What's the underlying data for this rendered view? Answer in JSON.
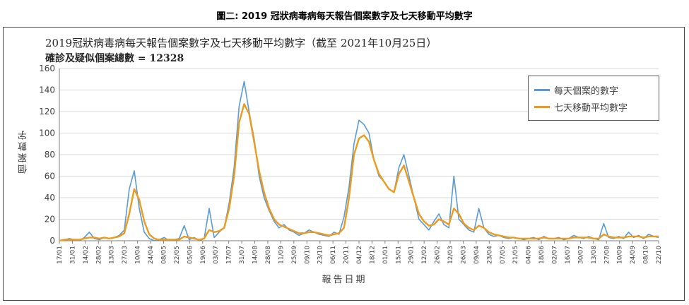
{
  "caption": "圖二: 2019 冠狀病毒病每天報告個案數字及七天移動平均數字",
  "colors": {
    "daily": "#5b9bd5",
    "avg": "#ed9b1c",
    "axis": "#7f7f7f"
  },
  "chart_data": {
    "type": "line",
    "title": "2019冠狀病毒病每天報告個案數字及七天移動平均數字（截至 2021年10月25日）",
    "subtitle": "確診及疑似個案總數 = 12328",
    "xlabel": "報告日期",
    "ylabel": "個案數字",
    "ylim": [
      0,
      160
    ],
    "yticks": [
      0,
      20,
      40,
      60,
      80,
      100,
      120,
      140,
      160
    ],
    "legend_position": "top-right",
    "x_tick_labels": [
      "17/01",
      "31/01",
      "14/02",
      "28/02",
      "13/03",
      "27/03",
      "10/04",
      "24/04",
      "08/05",
      "22/05",
      "05/06",
      "19/06",
      "03/07",
      "17/07",
      "31/07",
      "14/08",
      "28/08",
      "11/09",
      "25/09",
      "09/10",
      "23/10",
      "06/11",
      "20/11",
      "04/12",
      "18/12",
      "01/01",
      "15/01",
      "29/01",
      "12/02",
      "26/02",
      "12/03",
      "26/03",
      "09/04",
      "23/04",
      "07/05",
      "21/05",
      "04/06",
      "18/06",
      "02/07",
      "16/07",
      "30/07",
      "13/08",
      "27/08",
      "10/09",
      "24/09",
      "08/10",
      "22/10"
    ],
    "series": [
      {
        "name": "每天個案的數字",
        "values": [
          0,
          1,
          2,
          1,
          0,
          3,
          8,
          2,
          1,
          3,
          2,
          3,
          5,
          10,
          48,
          65,
          30,
          8,
          2,
          0,
          1,
          3,
          0,
          1,
          2,
          14,
          1,
          3,
          0,
          2,
          30,
          3,
          8,
          12,
          35,
          68,
          125,
          148,
          120,
          95,
          60,
          40,
          28,
          18,
          12,
          15,
          10,
          8,
          5,
          7,
          10,
          8,
          6,
          5,
          4,
          8,
          6,
          22,
          50,
          90,
          112,
          108,
          100,
          75,
          60,
          55,
          48,
          45,
          68,
          80,
          60,
          40,
          20,
          15,
          10,
          18,
          25,
          15,
          12,
          60,
          20,
          15,
          10,
          8,
          30,
          12,
          6,
          4,
          5,
          3,
          2,
          3,
          2,
          1,
          2,
          3,
          1,
          4,
          2,
          2,
          3,
          1,
          2,
          5,
          3,
          2,
          4,
          2,
          1,
          16,
          3,
          2,
          4,
          2,
          8,
          3,
          5,
          2,
          6,
          4,
          3
        ]
      },
      {
        "name": "七天移動平均數字",
        "values": [
          0,
          1,
          1,
          1,
          1,
          2,
          3,
          3,
          2,
          3,
          2,
          3,
          4,
          7,
          25,
          48,
          38,
          18,
          6,
          2,
          1,
          1,
          1,
          1,
          1,
          4,
          3,
          2,
          1,
          2,
          10,
          8,
          9,
          12,
          30,
          60,
          110,
          127,
          118,
          92,
          65,
          45,
          30,
          20,
          15,
          13,
          11,
          9,
          7,
          7,
          8,
          8,
          7,
          6,
          5,
          6,
          7,
          12,
          40,
          80,
          95,
          98,
          92,
          75,
          62,
          55,
          48,
          45,
          62,
          70,
          55,
          40,
          25,
          18,
          14,
          15,
          20,
          18,
          15,
          30,
          25,
          16,
          12,
          10,
          14,
          12,
          8,
          6,
          5,
          4,
          3,
          3,
          2,
          2,
          2,
          2,
          2,
          3,
          2,
          2,
          2,
          2,
          2,
          3,
          3,
          3,
          3,
          2,
          2,
          6,
          4,
          3,
          3,
          3,
          4,
          4,
          4,
          3,
          4,
          4,
          4
        ]
      }
    ]
  }
}
